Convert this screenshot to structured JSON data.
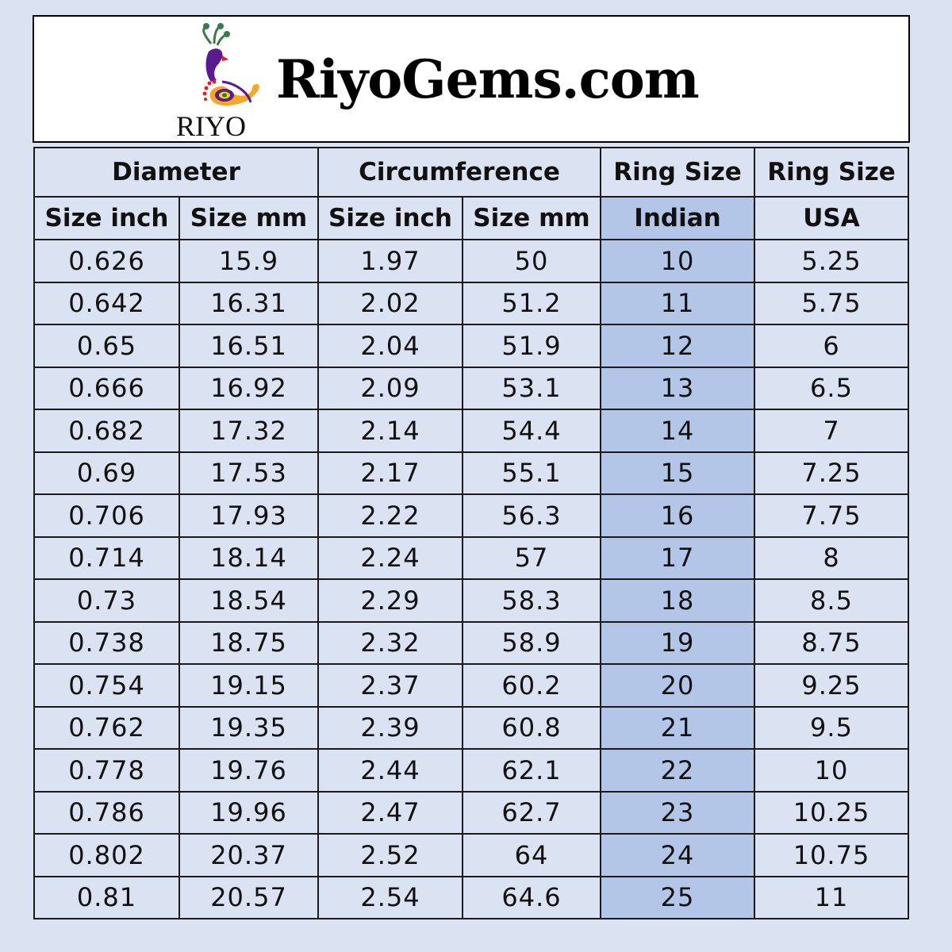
{
  "brand": {
    "site": "RiyoGems.com",
    "logo_text": "RIYO"
  },
  "colors": {
    "background": "#dbe2f2",
    "indian_column": "#b4c6e7"
  },
  "table": {
    "group_headers": [
      "Diameter",
      "Circumference",
      "Ring Size",
      "Ring Size"
    ],
    "sub_headers": [
      "Size inch",
      "Size mm",
      "Size inch",
      "Size mm",
      "Indian",
      "USA"
    ],
    "rows": [
      [
        "0.626",
        "15.9",
        "1.97",
        "50",
        "10",
        "5.25"
      ],
      [
        "0.642",
        "16.31",
        "2.02",
        "51.2",
        "11",
        "5.75"
      ],
      [
        "0.65",
        "16.51",
        "2.04",
        "51.9",
        "12",
        "6"
      ],
      [
        "0.666",
        "16.92",
        "2.09",
        "53.1",
        "13",
        "6.5"
      ],
      [
        "0.682",
        "17.32",
        "2.14",
        "54.4",
        "14",
        "7"
      ],
      [
        "0.69",
        "17.53",
        "2.17",
        "55.1",
        "15",
        "7.25"
      ],
      [
        "0.706",
        "17.93",
        "2.22",
        "56.3",
        "16",
        "7.75"
      ],
      [
        "0.714",
        "18.14",
        "2.24",
        "57",
        "17",
        "8"
      ],
      [
        "0.73",
        "18.54",
        "2.29",
        "58.3",
        "18",
        "8.5"
      ],
      [
        "0.738",
        "18.75",
        "2.32",
        "58.9",
        "19",
        "8.75"
      ],
      [
        "0.754",
        "19.15",
        "2.37",
        "60.2",
        "20",
        "9.25"
      ],
      [
        "0.762",
        "19.35",
        "2.39",
        "60.8",
        "21",
        "9.5"
      ],
      [
        "0.778",
        "19.76",
        "2.44",
        "62.1",
        "22",
        "10"
      ],
      [
        "0.786",
        "19.96",
        "2.47",
        "62.7",
        "23",
        "10.25"
      ],
      [
        "0.802",
        "20.37",
        "2.52",
        "64",
        "24",
        "10.75"
      ],
      [
        "0.81",
        "20.57",
        "2.54",
        "64.6",
        "25",
        "11"
      ]
    ]
  }
}
